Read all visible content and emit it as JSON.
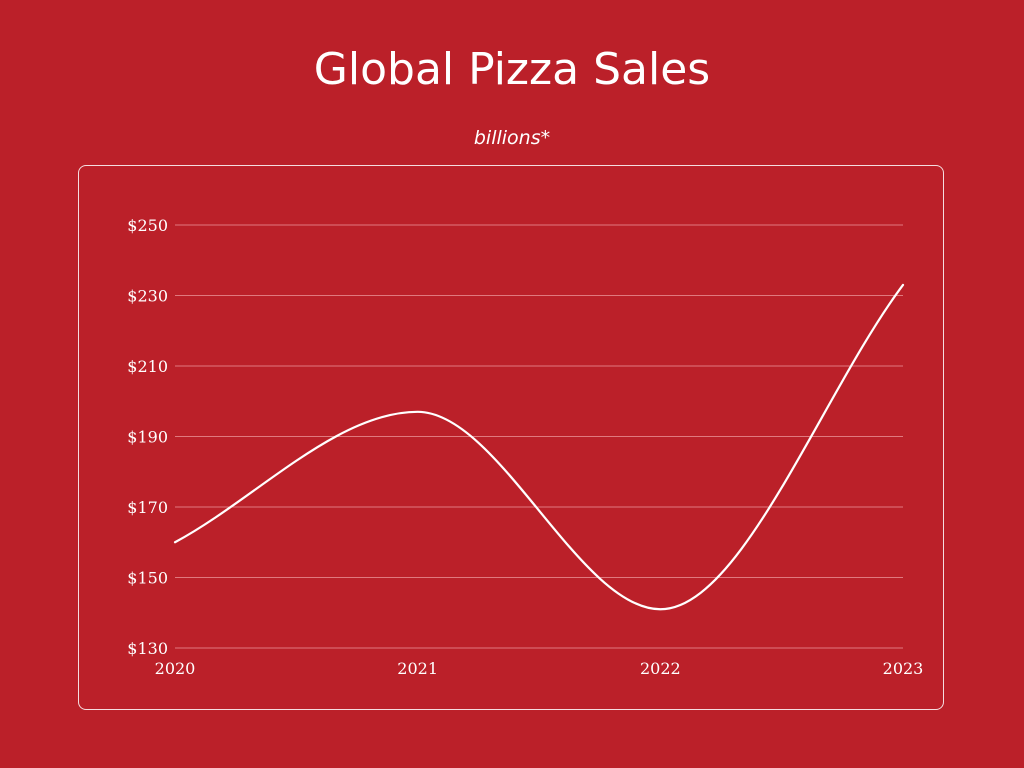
{
  "colors": {
    "background": "#bb2029",
    "text": "#ffffff",
    "line": "#ffffff",
    "grid": "#e0797e"
  },
  "chart_data": {
    "type": "line",
    "title": "Global Pizza Sales",
    "subtitle": "billions*",
    "xlabel": "",
    "ylabel": "",
    "x": [
      "2020",
      "2021",
      "2022",
      "2023"
    ],
    "series": [
      {
        "values": [
          160,
          197,
          141,
          233
        ]
      }
    ],
    "ylim": [
      130,
      250
    ],
    "yticks": [
      250,
      230,
      210,
      190,
      170,
      150,
      130
    ],
    "ytick_labels": [
      "$250",
      "$230",
      "$210",
      "$190",
      "$170",
      "$150",
      "$130"
    ],
    "xtick_labels": [
      "2020",
      "2021",
      "2022",
      "2023"
    ],
    "grid": true,
    "legend": "none",
    "smooth": true
  }
}
